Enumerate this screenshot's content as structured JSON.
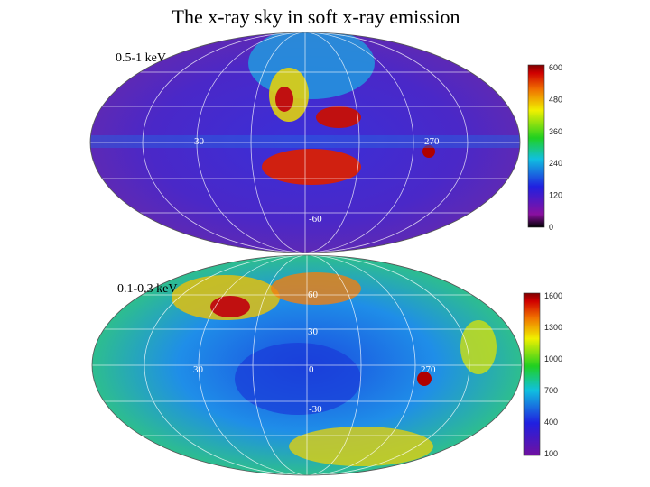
{
  "title": "The x-ray sky in soft x-ray emission",
  "panels": [
    {
      "band": "0.5-1 keV",
      "grid_labels": [
        "30",
        "270",
        "-60"
      ],
      "colorbar_ticks": [
        600,
        480,
        360,
        240,
        120,
        0
      ]
    },
    {
      "band": "0.1-0.3 keV",
      "grid_labels": [
        "60",
        "30",
        "30",
        "0",
        "270",
        "-30"
      ],
      "colorbar_ticks": [
        1600,
        1300,
        1000,
        700,
        400,
        100
      ]
    }
  ]
}
